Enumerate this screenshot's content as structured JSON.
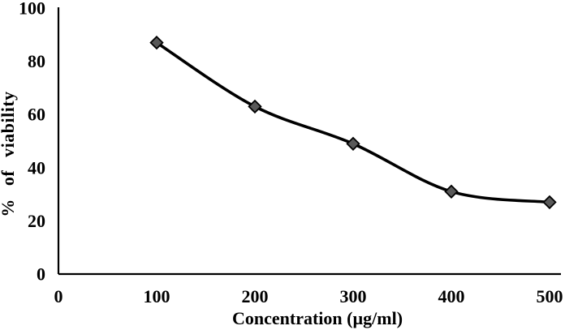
{
  "chart_data": {
    "type": "line",
    "title": "",
    "xlabel": "Concentration (µg/ml)",
    "ylabel": "% of viability",
    "series": [
      {
        "name": "% of viability",
        "x": [
          100,
          200,
          300,
          400,
          500
        ],
        "y": [
          87,
          63,
          49,
          31,
          27
        ]
      }
    ],
    "x_ticks": [
      0,
      100,
      200,
      300,
      400,
      500
    ],
    "y_ticks": [
      0,
      20,
      40,
      60,
      80,
      100
    ],
    "xlim": [
      0,
      500
    ],
    "ylim": [
      0,
      100
    ],
    "grid": false,
    "legend_position": "none",
    "line_style": "smooth",
    "marker_shape": "diamond",
    "colors": {
      "line": "#000000",
      "marker_fill": "#595959",
      "marker_stroke": "#000000",
      "axis": "#000000",
      "text": "#000000",
      "background": "#ffffff"
    }
  }
}
